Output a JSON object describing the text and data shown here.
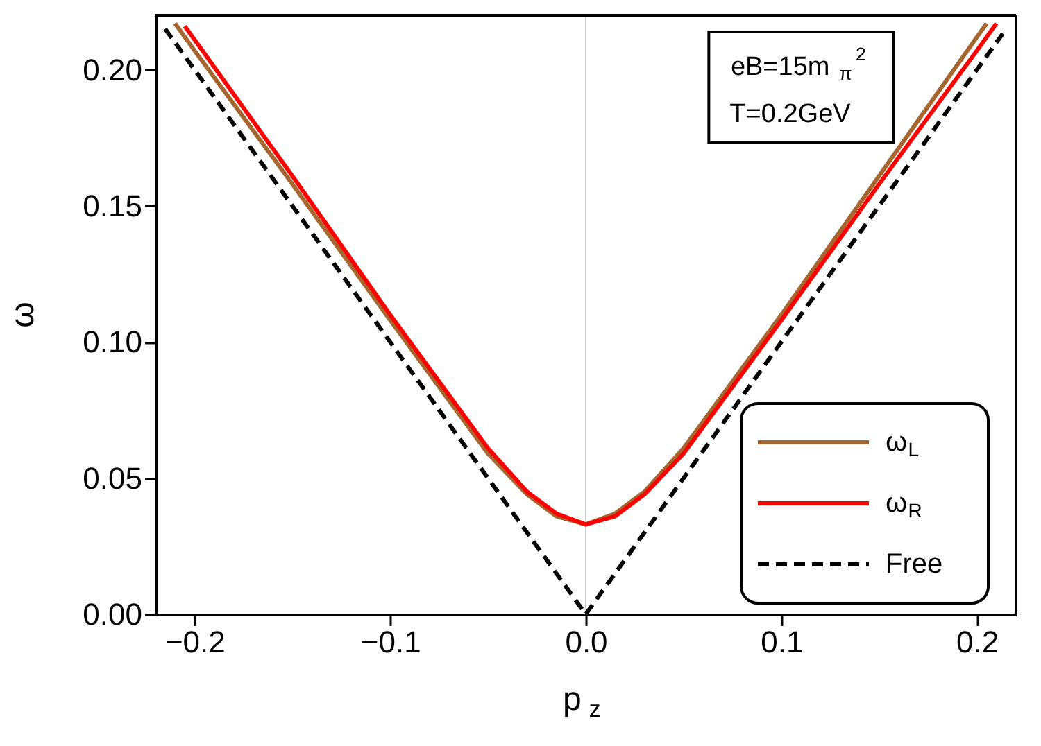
{
  "chart_data": {
    "type": "line",
    "xlabel": "p$_{z}$",
    "ylabel": "ω",
    "xlim": [
      -0.22,
      0.22
    ],
    "ylim": [
      0,
      0.22
    ],
    "xticks": [
      {
        "value": -0.2,
        "label": "−0.2"
      },
      {
        "value": -0.1,
        "label": "−0.1"
      },
      {
        "value": 0,
        "label": "0.0"
      },
      {
        "value": 0.1,
        "label": "0.1"
      },
      {
        "value": 0.2,
        "label": "0.2"
      }
    ],
    "yticks": [
      {
        "value": 0,
        "label": "0.00"
      },
      {
        "value": 0.05,
        "label": "0.05"
      },
      {
        "value": 0.1,
        "label": "0.10"
      },
      {
        "value": 0.15,
        "label": "0.15"
      },
      {
        "value": 0.2,
        "label": "0.20"
      }
    ],
    "series": [
      {
        "name": "ω$_{L}$",
        "color": "#a5662f",
        "line_style": "solid",
        "x": [
          -0.21,
          -0.2,
          -0.15,
          -0.1,
          -0.05,
          -0.03,
          -0.015,
          0,
          0.015,
          0.03,
          0.05,
          0.1,
          0.15,
          0.2,
          0.205
        ],
        "values": [
          0.217,
          0.207,
          0.158,
          0.108,
          0.059,
          0.044,
          0.036,
          0.033,
          0.037,
          0.045,
          0.061,
          0.11,
          0.161,
          0.212,
          0.217
        ]
      },
      {
        "name": "ω$_{R}$",
        "color": "#ff0000",
        "line_style": "solid",
        "x": [
          -0.205,
          -0.2,
          -0.15,
          -0.1,
          -0.05,
          -0.03,
          -0.015,
          0,
          0.015,
          0.03,
          0.05,
          0.1,
          0.15,
          0.2,
          0.21
        ],
        "values": [
          0.216,
          0.211,
          0.161,
          0.11,
          0.061,
          0.045,
          0.037,
          0.033,
          0.036,
          0.044,
          0.059,
          0.108,
          0.158,
          0.207,
          0.217
        ]
      },
      {
        "name": "Free",
        "color": "#000000",
        "line_style": "dashed",
        "x": [
          -0.215,
          0,
          0.215
        ],
        "values": [
          0.215,
          0,
          0.215
        ]
      }
    ],
    "ref_lines": [
      {
        "axis": "x",
        "value": 0,
        "color": "#cccccc"
      }
    ],
    "annotations": [
      "eB=15m$_{π}$$^{2}$",
      "T=0.2GeV"
    ],
    "legend": "bottom right",
    "grid": false
  }
}
